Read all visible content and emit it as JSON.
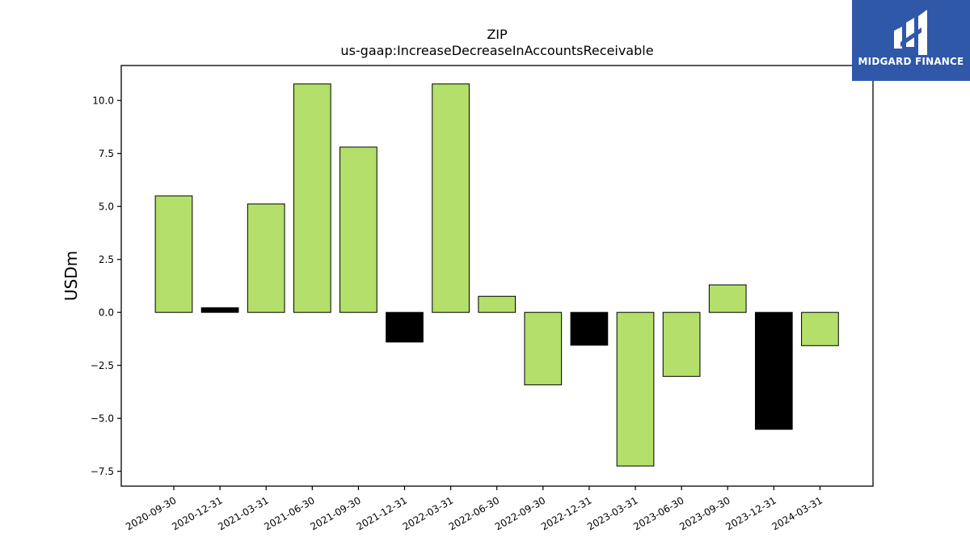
{
  "chart_data": {
    "type": "bar",
    "title": "ZIP",
    "subtitle": "us-gaap:IncreaseDecreaseInAccountsReceivable",
    "ylabel": "USDm",
    "xlabel": "",
    "categories": [
      "2020-09-30",
      "2020-12-31",
      "2021-03-31",
      "2021-06-30",
      "2021-09-30",
      "2021-12-31",
      "2022-03-31",
      "2022-06-30",
      "2022-09-30",
      "2022-12-31",
      "2023-03-31",
      "2023-06-30",
      "2023-09-30",
      "2023-12-31",
      "2024-03-31"
    ],
    "values": [
      5.5,
      0.22,
      5.12,
      10.78,
      7.8,
      -1.4,
      10.78,
      0.76,
      -3.42,
      -1.55,
      -7.25,
      -3.02,
      1.3,
      -5.52,
      -1.57
    ],
    "bar_colors": [
      "#b3df6a",
      "#000000",
      "#b3df6a",
      "#b3df6a",
      "#b3df6a",
      "#000000",
      "#b3df6a",
      "#b3df6a",
      "#b3df6a",
      "#000000",
      "#b3df6a",
      "#b3df6a",
      "#b3df6a",
      "#000000",
      "#b3df6a"
    ],
    "ylim": [
      -8.2,
      11.65
    ],
    "yticks": [
      -7.5,
      -5.0,
      -2.5,
      0.0,
      2.5,
      5.0,
      7.5,
      10.0
    ],
    "ytick_labels": [
      "−7.5",
      "−5.0",
      "−2.5",
      "0.0",
      "2.5",
      "5.0",
      "7.5",
      "10.0"
    ],
    "grid": false,
    "legend": "none"
  },
  "logo": {
    "text": "MIDGARD FINANCE",
    "background": "#2f58a9"
  }
}
